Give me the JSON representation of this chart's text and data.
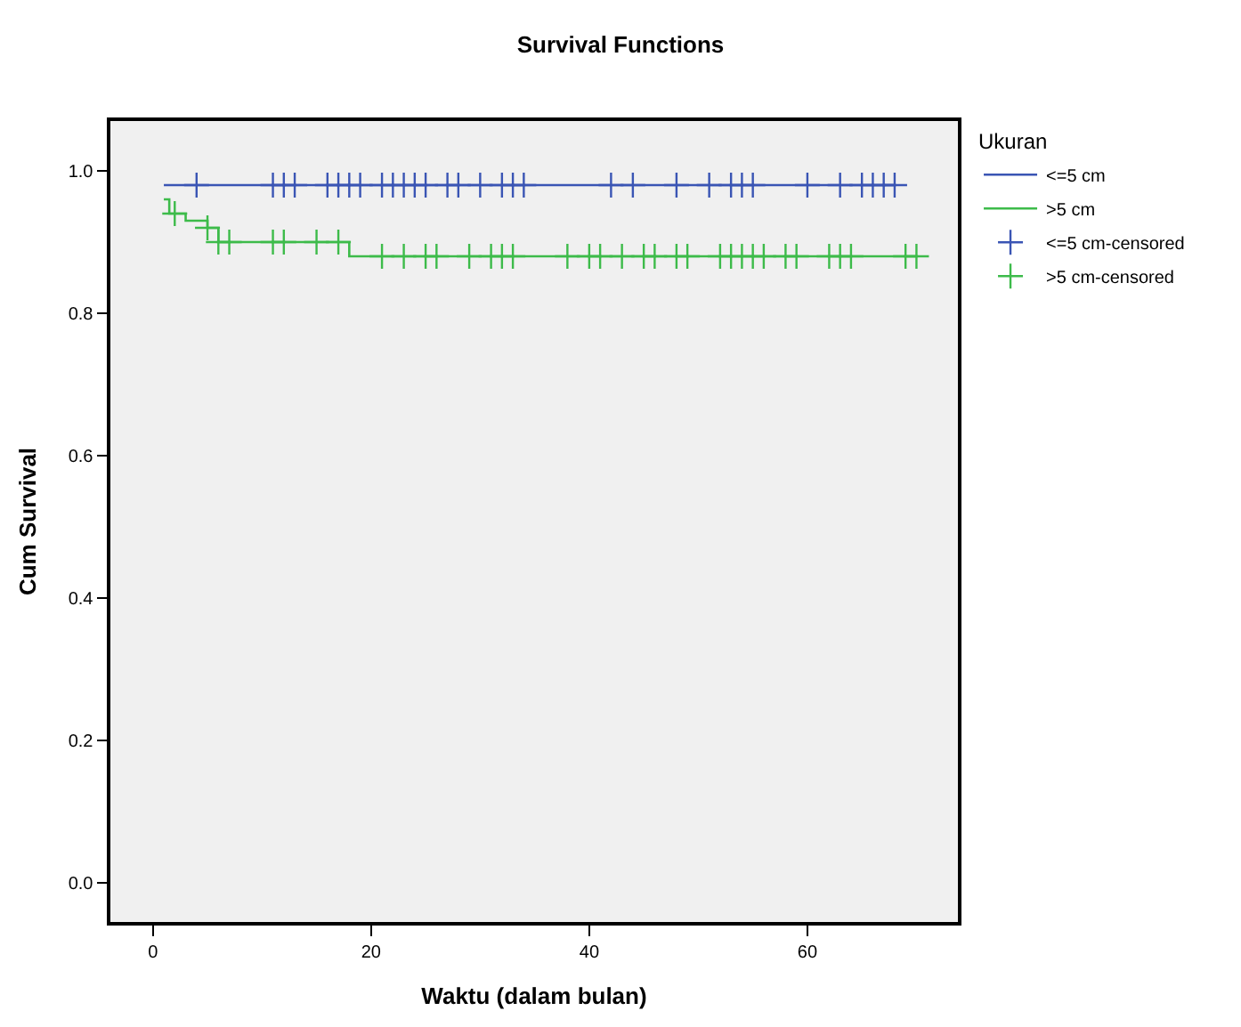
{
  "chart_data": {
    "type": "step",
    "title": "Survival Functions",
    "xlabel": "Waktu (dalam bulan)",
    "ylabel": "Cum Survival",
    "legend_title": "Ukuran",
    "xlim": [
      -3.9,
      73.8
    ],
    "ylim": [
      -0.055,
      1.07
    ],
    "xticks": [
      0,
      20,
      40,
      60
    ],
    "yticks": [
      {
        "value": 0,
        "label": "0.0"
      },
      {
        "value": 0.2,
        "label": "0.2"
      },
      {
        "value": 0.4,
        "label": "0.4"
      },
      {
        "value": 0.6,
        "label": "0.6"
      },
      {
        "value": 0.8,
        "label": "0.8"
      },
      {
        "value": 1,
        "label": "1.0"
      }
    ],
    "grid": false,
    "legend": "top right",
    "series": [
      {
        "name": "<=5 cm",
        "color": "#3a55b4",
        "marker": "none",
        "x": [
          1,
          68
        ],
        "values": [
          0.98,
          0.98
        ]
      },
      {
        "name": ">5 cm",
        "color": "#3dbb4a",
        "marker": "none",
        "x": [
          1,
          1.5,
          3,
          5,
          6,
          18,
          70
        ],
        "values": [
          0.96,
          0.94,
          0.93,
          0.92,
          0.9,
          0.88,
          0.88
        ]
      },
      {
        "name": "<=5 cm-censored",
        "type": "scatter",
        "color": "#3a55b4",
        "marker": "cross",
        "x": [
          4,
          11,
          12,
          13,
          16,
          17,
          18,
          19,
          21,
          22,
          23,
          24,
          25,
          27,
          28,
          30,
          32,
          33,
          34,
          42,
          44,
          48,
          51,
          53,
          54,
          55,
          60,
          63,
          65,
          66,
          67,
          68
        ],
        "values": [
          0.98,
          0.98,
          0.98,
          0.98,
          0.98,
          0.98,
          0.98,
          0.98,
          0.98,
          0.98,
          0.98,
          0.98,
          0.98,
          0.98,
          0.98,
          0.98,
          0.98,
          0.98,
          0.98,
          0.98,
          0.98,
          0.98,
          0.98,
          0.98,
          0.98,
          0.98,
          0.98,
          0.98,
          0.98,
          0.98,
          0.98,
          0.98
        ]
      },
      {
        "name": ">5 cm-censored",
        "type": "scatter",
        "color": "#3dbb4a",
        "marker": "cross",
        "x": [
          2,
          5,
          6,
          7,
          11,
          12,
          15,
          17,
          21,
          23,
          25,
          26,
          29,
          31,
          32,
          33,
          38,
          40,
          41,
          43,
          45,
          46,
          48,
          49,
          52,
          53,
          54,
          55,
          56,
          58,
          59,
          62,
          63,
          64,
          69,
          70
        ],
        "values": [
          0.94,
          0.92,
          0.9,
          0.9,
          0.9,
          0.9,
          0.9,
          0.9,
          0.88,
          0.88,
          0.88,
          0.88,
          0.88,
          0.88,
          0.88,
          0.88,
          0.88,
          0.88,
          0.88,
          0.88,
          0.88,
          0.88,
          0.88,
          0.88,
          0.88,
          0.88,
          0.88,
          0.88,
          0.88,
          0.88,
          0.88,
          0.88,
          0.88,
          0.88,
          0.88,
          0.88
        ]
      }
    ]
  }
}
